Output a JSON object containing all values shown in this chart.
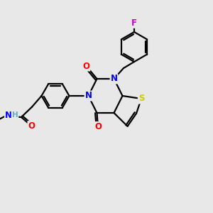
{
  "background_color": "#e8e8e8",
  "bond_color": "#000000",
  "atom_colors": {
    "N": "#0000ff",
    "O": "#ff0000",
    "S": "#cccc00",
    "F": "#cc00cc",
    "H": "#5fafc8",
    "C": "#000000"
  },
  "title": "",
  "figsize": [
    3.0,
    3.0
  ],
  "dpi": 100
}
